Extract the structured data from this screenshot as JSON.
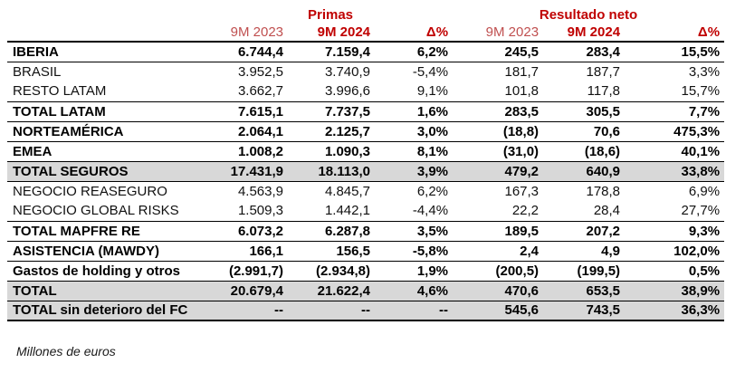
{
  "colors": {
    "header_red_bold": "#C00000",
    "header_red_light": "#C05050",
    "row_gray": "#D8D8D8",
    "border": "#000000"
  },
  "table": {
    "group_headers": [
      {
        "label": "Primas"
      },
      {
        "label": "Resultado neto"
      }
    ],
    "column_headers": [
      "9M 2023",
      "9M 2024",
      "Δ%",
      "9M 2023",
      "9M 2024",
      "Δ%"
    ],
    "rows": [
      {
        "label": "IBERIA",
        "values": [
          "6.744,4",
          "7.159,4",
          "6,2%",
          "245,5",
          "283,4",
          "15,5%"
        ],
        "bold": true,
        "gray": false,
        "border_bottom": true,
        "last": false
      },
      {
        "label": "BRASIL",
        "values": [
          "3.952,5",
          "3.740,9",
          "-5,4%",
          "181,7",
          "187,7",
          "3,3%"
        ],
        "bold": false,
        "gray": false,
        "border_bottom": false,
        "last": false
      },
      {
        "label": "RESTO LATAM",
        "values": [
          "3.662,7",
          "3.996,6",
          "9,1%",
          "101,8",
          "117,8",
          "15,7%"
        ],
        "bold": false,
        "gray": false,
        "border_bottom": true,
        "last": false
      },
      {
        "label": "TOTAL LATAM",
        "values": [
          "7.615,1",
          "7.737,5",
          "1,6%",
          "283,5",
          "305,5",
          "7,7%"
        ],
        "bold": true,
        "gray": false,
        "border_bottom": true,
        "last": false
      },
      {
        "label": "NORTEAMÉRICA",
        "values": [
          "2.064,1",
          "2.125,7",
          "3,0%",
          "(18,8)",
          "70,6",
          "475,3%"
        ],
        "bold": true,
        "gray": false,
        "border_bottom": true,
        "last": false
      },
      {
        "label": "EMEA",
        "values": [
          "1.008,2",
          "1.090,3",
          "8,1%",
          "(31,0)",
          "(18,6)",
          "40,1%"
        ],
        "bold": true,
        "gray": false,
        "border_bottom": true,
        "last": false
      },
      {
        "label": "TOTAL SEGUROS",
        "values": [
          "17.431,9",
          "18.113,0",
          "3,9%",
          "479,2",
          "640,9",
          "33,8%"
        ],
        "bold": true,
        "gray": true,
        "border_bottom": true,
        "last": false
      },
      {
        "label": "NEGOCIO REASEGURO",
        "values": [
          "4.563,9",
          "4.845,7",
          "6,2%",
          "167,3",
          "178,8",
          "6,9%"
        ],
        "bold": false,
        "gray": false,
        "border_bottom": false,
        "last": false
      },
      {
        "label": "NEGOCIO GLOBAL RISKS",
        "values": [
          "1.509,3",
          "1.442,1",
          "-4,4%",
          "22,2",
          "28,4",
          "27,7%"
        ],
        "bold": false,
        "gray": false,
        "border_bottom": true,
        "last": false
      },
      {
        "label": "TOTAL MAPFRE RE",
        "values": [
          "6.073,2",
          "6.287,8",
          "3,5%",
          "189,5",
          "207,2",
          "9,3%"
        ],
        "bold": true,
        "gray": false,
        "border_bottom": true,
        "last": false
      },
      {
        "label": "ASISTENCIA (MAWDY)",
        "values": [
          "166,1",
          "156,5",
          "-5,8%",
          "2,4",
          "4,9",
          "102,0%"
        ],
        "bold": true,
        "gray": false,
        "border_bottom": true,
        "last": false
      },
      {
        "label": "Gastos de holding y otros",
        "values": [
          "(2.991,7)",
          "(2.934,8)",
          "1,9%",
          "(200,5)",
          "(199,5)",
          "0,5%"
        ],
        "bold": true,
        "gray": false,
        "border_bottom": true,
        "last": false
      },
      {
        "label": "TOTAL",
        "values": [
          "20.679,4",
          "21.622,4",
          "4,6%",
          "470,6",
          "653,5",
          "38,9%"
        ],
        "bold": true,
        "gray": true,
        "border_bottom": true,
        "last": false
      },
      {
        "label": "TOTAL sin deterioro del FC",
        "values": [
          "--",
          "--",
          "--",
          "545,6",
          "743,5",
          "36,3%"
        ],
        "bold": true,
        "gray": true,
        "border_bottom": true,
        "last": true
      }
    ]
  },
  "footer": {
    "note": "Millones de euros"
  }
}
